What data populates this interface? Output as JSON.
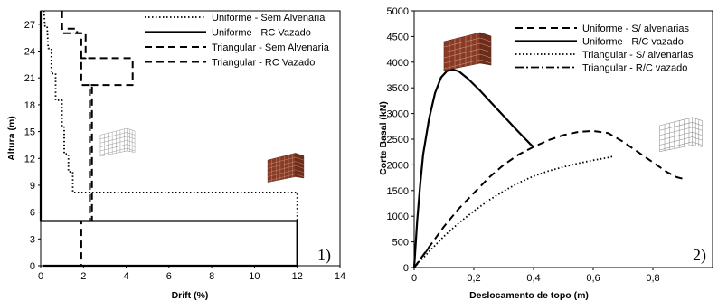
{
  "chart_data": [
    {
      "type": "line",
      "panel_label": "1)",
      "xlabel": "Drift (%)",
      "ylabel": "Altura (m)",
      "xlim": [
        0,
        14
      ],
      "ylim": [
        0,
        28.5
      ],
      "xticks": [
        0,
        2,
        4,
        6,
        8,
        10,
        12,
        14
      ],
      "yticks": [
        0,
        3,
        6,
        9,
        12,
        15,
        18,
        21,
        24,
        27
      ],
      "legend_position": "top-right",
      "series": [
        {
          "name": "Uniforme - Sem Alvenaria",
          "style": "dotted",
          "x": [
            0.15,
            0.2,
            0.3,
            0.35,
            0.5,
            0.5,
            0.7,
            0.7,
            1.0,
            1.0,
            1.1,
            1.1,
            1.3,
            1.3,
            1.5,
            1.5,
            1.7,
            1.7,
            1.9,
            1.9,
            2.0,
            2.0,
            12.0,
            12.0,
            0.1
          ],
          "y": [
            28.5,
            26.8,
            26.8,
            24.3,
            24.3,
            21.5,
            21.5,
            18.5,
            18.5,
            15.5,
            15.5,
            12.5,
            12.5,
            10.5,
            10.5,
            8.2,
            8.2,
            8.2,
            8.2,
            8.2,
            8.2,
            8.2,
            8.2,
            0,
            0
          ]
        },
        {
          "name": "Uniforme - RC Vazado",
          "style": "solid",
          "x": [
            0,
            0,
            12.0,
            12.0,
            0.1
          ],
          "y": [
            28.5,
            5.0,
            5.0,
            0,
            0
          ]
        },
        {
          "name": "Triangular - Sem Alvenaria",
          "style": "dashed",
          "x": [
            1.0,
            1.0,
            1.9,
            1.9,
            2.4,
            2.4,
            1.9,
            1.9
          ],
          "y": [
            28.5,
            26.0,
            26.0,
            20.2,
            20.2,
            5.0,
            5.0,
            0
          ]
        },
        {
          "name": "Triangular - RC Vazado",
          "style": "dashed",
          "x": [
            1.0,
            1.0,
            1.7,
            1.7,
            2.1,
            2.1,
            1.9,
            1.9,
            4.3,
            4.3,
            2.9,
            2.9,
            2.3,
            2.3
          ],
          "y": [
            28.5,
            26.5,
            26.5,
            26.0,
            26.0,
            23.2,
            23.2,
            23.2,
            23.2,
            20.2,
            20.2,
            20.2,
            20.2,
            5.0
          ]
        }
      ]
    },
    {
      "type": "line",
      "panel_label": "2)",
      "xlabel": "Deslocamento de topo (m)",
      "ylabel": "Corte Basal (kN)",
      "xlim": [
        0,
        1.0
      ],
      "ylim": [
        0,
        5000
      ],
      "xticks": [
        0,
        0.2,
        0.4,
        0.6,
        0.8
      ],
      "xtick_labels": [
        "0",
        "0,2",
        "0,4",
        "0,6",
        "0,8"
      ],
      "yticks": [
        0,
        500,
        1000,
        1500,
        2000,
        2500,
        3000,
        3500,
        4000,
        4500,
        5000
      ],
      "legend_position": "top-center",
      "series": [
        {
          "name": "Uniforme - S/ alvenarias",
          "style": "dashed",
          "x": [
            0,
            0.05,
            0.1,
            0.15,
            0.2,
            0.25,
            0.3,
            0.35,
            0.4,
            0.45,
            0.5,
            0.55,
            0.6,
            0.65,
            0.7,
            0.75,
            0.8,
            0.85,
            0.88,
            0.9
          ],
          "y": [
            0,
            400,
            800,
            1150,
            1450,
            1750,
            2000,
            2200,
            2350,
            2480,
            2580,
            2640,
            2660,
            2620,
            2450,
            2250,
            2050,
            1850,
            1760,
            1730
          ]
        },
        {
          "name": "Uniforme - R/C vazado",
          "style": "solid",
          "x": [
            0,
            0.01,
            0.02,
            0.03,
            0.05,
            0.07,
            0.09,
            0.11,
            0.13,
            0.15,
            0.18,
            0.22,
            0.26,
            0.3,
            0.34,
            0.37,
            0.39,
            0.4
          ],
          "y": [
            0,
            900,
            1600,
            2200,
            2900,
            3400,
            3700,
            3830,
            3860,
            3820,
            3680,
            3450,
            3200,
            2950,
            2700,
            2520,
            2400,
            2350
          ]
        },
        {
          "name": "Triangular - S/ alvenarias",
          "style": "dotted",
          "x": [
            0,
            0.05,
            0.1,
            0.15,
            0.2,
            0.25,
            0.3,
            0.35,
            0.4,
            0.45,
            0.5,
            0.55,
            0.6,
            0.65,
            0.67
          ],
          "y": [
            0,
            310,
            610,
            870,
            1100,
            1310,
            1490,
            1650,
            1780,
            1880,
            1960,
            2030,
            2090,
            2140,
            2170
          ]
        },
        {
          "name": "Triangular - R/C vazado",
          "style": "dashdot",
          "x": [
            0,
            0.01,
            0.02,
            0.03,
            0.04,
            0.05
          ],
          "y": [
            0,
            70,
            150,
            230,
            310,
            390
          ]
        }
      ]
    }
  ],
  "icons": [
    "building-wireframe-icon",
    "building-with-infill-icon"
  ],
  "colors": {
    "line": "#000000",
    "building_brick": "#8a3a24",
    "wireframe": "#808080"
  }
}
